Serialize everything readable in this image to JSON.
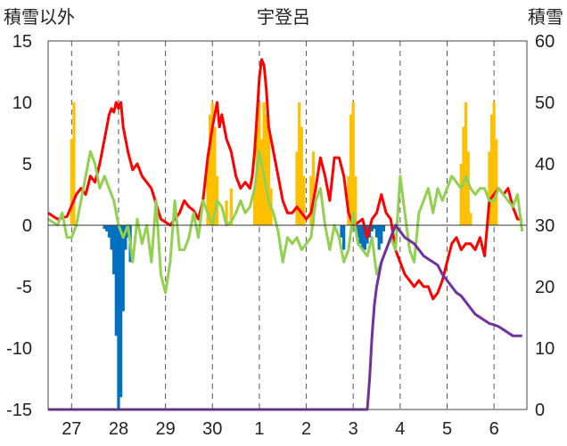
{
  "chart_data": {
    "type": "bar+line",
    "title": "宇登呂",
    "ylabel_left": "積雪以外",
    "ylabel_right": "積雪",
    "ylim_left": [
      -15,
      15
    ],
    "ylim_right": [
      0,
      60
    ],
    "yticks_left": [
      15,
      10,
      5,
      0,
      -5,
      -10,
      -15
    ],
    "yticks_right": [
      60,
      50,
      40,
      30,
      20,
      10,
      0
    ],
    "x_range_hours": [
      0,
      204
    ],
    "x_ticks": [
      {
        "label": "27",
        "hour": 10
      },
      {
        "label": "28",
        "hour": 30
      },
      {
        "label": "29",
        "hour": 50
      },
      {
        "label": "30",
        "hour": 70
      },
      {
        "label": "1",
        "hour": 90
      },
      {
        "label": "2",
        "hour": 110
      },
      {
        "label": "3",
        "hour": 130
      },
      {
        "label": "4",
        "hour": 150
      },
      {
        "label": "5",
        "hour": 170
      },
      {
        "label": "6",
        "hour": 190
      }
    ],
    "grid": {
      "vertical_dashed": true,
      "horizontal": false
    },
    "colors": {
      "red_line": "#ff0000",
      "green_line": "#92d050",
      "orange_bars": "#ffc000",
      "blue_bars": "#0070c0",
      "purple_line": "#7030a0"
    },
    "series": [
      {
        "color_key": "red_line",
        "type": "line",
        "axis": "left",
        "x": [
          0,
          4,
          8,
          12,
          14,
          16,
          18,
          20,
          22,
          24,
          25,
          26,
          27,
          28,
          29,
          30,
          31,
          32,
          34,
          36,
          38,
          40,
          44,
          48,
          52,
          54,
          56,
          58,
          60,
          62,
          64,
          66,
          68,
          70,
          71,
          72,
          73,
          74,
          76,
          78,
          80,
          82,
          84,
          86,
          87,
          88,
          89,
          90,
          91,
          92,
          93,
          94,
          96,
          98,
          100,
          102,
          104,
          106,
          108,
          110,
          112,
          114,
          116,
          118,
          120,
          122,
          124,
          126,
          128,
          130,
          132,
          134,
          136,
          138,
          140,
          142,
          144,
          146,
          148,
          150,
          152,
          154,
          156,
          158,
          160,
          162,
          164,
          166,
          168,
          170,
          172,
          174,
          176,
          178,
          180,
          182,
          184,
          186,
          188,
          190,
          192,
          194,
          196,
          198,
          200,
          202
        ],
        "y": [
          1,
          0.5,
          0.7,
          2.5,
          3,
          2.5,
          4,
          3.5,
          5,
          7,
          8,
          9,
          9.5,
          9.2,
          10,
          9.5,
          10,
          8,
          6,
          4.5,
          5,
          4,
          3,
          0.5,
          0,
          0.5,
          1,
          2,
          1.5,
          1.2,
          0.5,
          2,
          5.5,
          8,
          9,
          10,
          8,
          9,
          7,
          6,
          4,
          3,
          3.5,
          3,
          4,
          6,
          9,
          12,
          13.5,
          13,
          11,
          8,
          6,
          4,
          2,
          1,
          1,
          1.5,
          1,
          0.5,
          1,
          3,
          5.5,
          4,
          2,
          5.5,
          5.5,
          4,
          1,
          0,
          0.2,
          0.5,
          -1,
          0.5,
          1,
          2.5,
          1,
          0.5,
          -2,
          -3,
          -4,
          -4.5,
          -5,
          -4.5,
          -5,
          -5,
          -6,
          -5.5,
          -4.5,
          -3,
          -1.5,
          -1,
          -2,
          -1.5,
          -1.5,
          -2,
          -1,
          -2.5,
          2,
          2.5,
          3,
          2.5,
          3,
          1.5,
          0.5,
          0.5
        ]
      },
      {
        "color_key": "green_line",
        "type": "line",
        "axis": "left",
        "x": [
          0,
          4,
          6,
          8,
          10,
          12,
          14,
          16,
          18,
          20,
          22,
          24,
          26,
          28,
          30,
          32,
          34,
          36,
          38,
          40,
          42,
          44,
          46,
          48,
          50,
          52,
          54,
          56,
          58,
          60,
          62,
          64,
          66,
          68,
          70,
          72,
          74,
          76,
          78,
          80,
          82,
          84,
          86,
          88,
          90,
          92,
          94,
          96,
          98,
          100,
          102,
          104,
          106,
          108,
          110,
          112,
          114,
          116,
          118,
          120,
          122,
          124,
          126,
          128,
          130,
          132,
          134,
          136,
          138,
          140,
          142,
          144,
          146,
          148,
          150,
          152,
          154,
          156,
          158,
          160,
          162,
          164,
          166,
          168,
          170,
          172,
          174,
          176,
          178,
          180,
          182,
          184,
          186,
          188,
          190,
          192,
          194,
          196,
          198,
          200,
          202
        ],
        "y": [
          0.5,
          0,
          1,
          -1,
          -1,
          0,
          2,
          4,
          6,
          5,
          3,
          4,
          3,
          2,
          0,
          -1,
          0,
          -3,
          0.5,
          -1.5,
          0,
          -3,
          2,
          -4,
          -5.5,
          -3,
          2,
          -2,
          -2,
          -1,
          1,
          -1,
          2,
          1,
          0,
          2,
          1.5,
          0,
          0.3,
          1,
          2,
          1,
          1.5,
          3,
          6,
          4,
          2,
          1,
          -0.5,
          -3,
          -1,
          -1.5,
          -1,
          -2,
          -1.5,
          -1,
          2,
          3,
          0,
          -2,
          0,
          -1,
          -3,
          -2,
          1,
          -1.5,
          -2,
          -2.5,
          -1,
          -4,
          -3,
          -2,
          -1,
          -2,
          4,
          1,
          -2,
          -3,
          1,
          2,
          3,
          1,
          3,
          2,
          3,
          4,
          3.5,
          3,
          4,
          3,
          2.5,
          3,
          3,
          2,
          2,
          3,
          2.5,
          2,
          1.5,
          2.5,
          -0.5
        ]
      },
      {
        "color_key": "purple_line",
        "type": "line",
        "axis": "right",
        "x": [
          0,
          136,
          137,
          138,
          139,
          140,
          141,
          142,
          144,
          146,
          148,
          150,
          152,
          154,
          156,
          158,
          160,
          162,
          164,
          166,
          168,
          170,
          172,
          174,
          176,
          178,
          180,
          182,
          184,
          186,
          188,
          190,
          192,
          194,
          196,
          198,
          200,
          202
        ],
        "y": [
          0,
          0,
          5,
          12,
          17,
          20,
          22,
          24,
          26,
          28,
          30,
          29,
          28,
          27.5,
          27,
          26,
          25,
          24.5,
          24,
          23.5,
          22,
          21,
          20,
          19,
          18.5,
          17.5,
          16.5,
          15.5,
          15,
          14.5,
          14,
          13.8,
          13.5,
          13,
          12.5,
          12,
          12,
          12
        ]
      },
      {
        "color_key": "orange_bars",
        "type": "bar",
        "axis": "left",
        "hour": [
          10,
          11,
          68,
          69,
          70,
          71,
          72,
          76,
          78,
          88,
          89,
          90,
          91,
          92,
          93,
          94,
          95,
          106,
          107,
          108,
          109,
          112,
          113,
          128,
          129,
          130,
          131,
          176,
          177,
          178,
          179,
          180,
          188,
          189,
          190,
          191
        ],
        "value": [
          7,
          10,
          5,
          9,
          10,
          8,
          4,
          2,
          3,
          3,
          8,
          10,
          7,
          10,
          9,
          8,
          3,
          6,
          10,
          8,
          4,
          4,
          6,
          4,
          9,
          10,
          4,
          5,
          8,
          10,
          6,
          1,
          6,
          9,
          10,
          7
        ]
      },
      {
        "color_key": "blue_bars",
        "type": "bar",
        "axis": "left",
        "hour": [
          24,
          25,
          26,
          27,
          28,
          29,
          30,
          31,
          32,
          33,
          34,
          35,
          36,
          37,
          38,
          39,
          40,
          41,
          42,
          43,
          44,
          45,
          46,
          47,
          48,
          49,
          50,
          51,
          52,
          53,
          54,
          55,
          56,
          57,
          58,
          59,
          60,
          61,
          62,
          63,
          64,
          65,
          66,
          67,
          68,
          69,
          70,
          71,
          72,
          73,
          74,
          75,
          76,
          77,
          78,
          79,
          80,
          81,
          82,
          83,
          84,
          85,
          86,
          87,
          88,
          89,
          90,
          91,
          92,
          93,
          94,
          95,
          96,
          97,
          98,
          99,
          100,
          101,
          102,
          103,
          104,
          105,
          106,
          107,
          108,
          109,
          110,
          111,
          112,
          113,
          114,
          115,
          116,
          117,
          118,
          119,
          120,
          121,
          122,
          123,
          124,
          125,
          126,
          127,
          128,
          129,
          130,
          131,
          132,
          133,
          134,
          135,
          136,
          137,
          138,
          139,
          140,
          141,
          142,
          143,
          144,
          145
        ],
        "value": [
          -0.3,
          -0.5,
          -1,
          -2,
          -4,
          -9,
          -15,
          -14,
          -7,
          -2,
          -1,
          -3,
          0,
          0,
          0,
          0,
          0,
          0,
          0,
          0,
          0,
          0,
          0,
          0,
          0,
          0,
          0,
          0,
          0,
          0,
          0,
          0,
          0,
          0,
          0,
          0,
          0,
          0,
          0,
          0,
          0,
          0,
          0,
          0,
          0,
          0,
          0,
          0,
          0,
          0,
          0,
          0,
          0,
          0,
          0,
          0,
          0,
          0,
          0,
          0,
          0,
          0,
          0,
          0,
          0,
          0,
          0,
          0,
          0,
          0,
          0,
          0,
          0,
          0,
          0,
          0,
          0,
          0,
          0,
          0,
          0,
          0,
          0,
          0,
          0,
          0,
          0,
          0,
          0,
          0,
          0,
          0,
          0,
          0,
          0,
          0,
          0,
          0,
          0,
          0,
          0,
          -1,
          -2,
          0,
          0,
          0,
          0,
          -0.5,
          -1,
          -1.5,
          -2,
          -2,
          -1.5,
          -1,
          -0.5,
          -0.3,
          -1,
          -2,
          -1.5,
          -0.5,
          0,
          0
        ]
      }
    ]
  }
}
